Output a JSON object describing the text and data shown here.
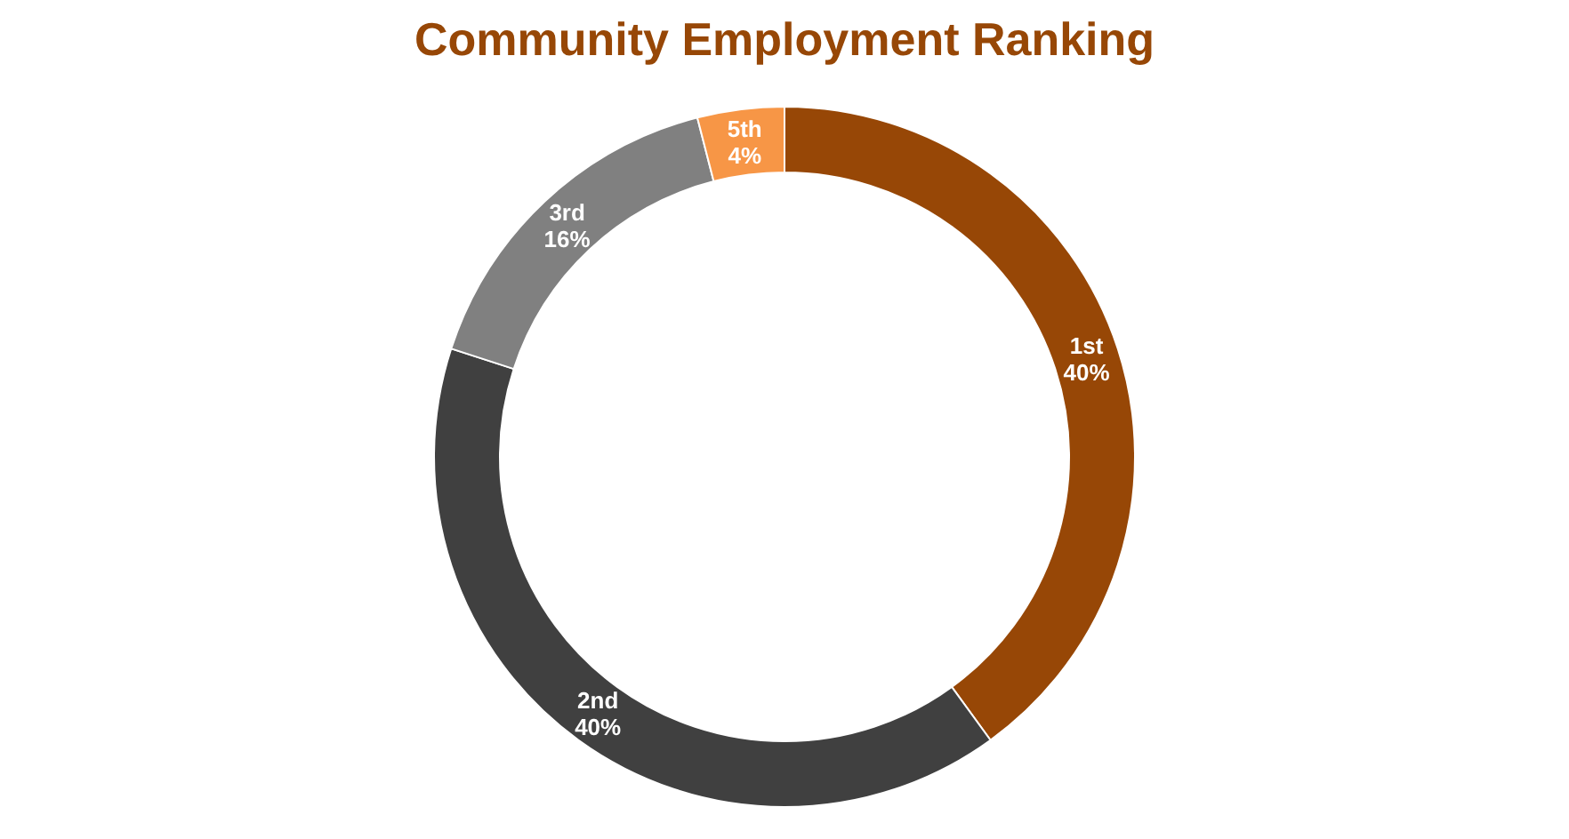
{
  "chart_data": {
    "type": "donut",
    "title": "Community Employment Ranking",
    "categories": [
      "1st",
      "2nd",
      "3rd",
      "5th"
    ],
    "values": [
      40,
      40,
      16,
      4
    ],
    "colors": [
      "#974706",
      "#404040",
      "#808080",
      "#f79646"
    ],
    "value_labels": [
      "40%",
      "40%",
      "16%",
      "4%"
    ],
    "legend": false
  }
}
